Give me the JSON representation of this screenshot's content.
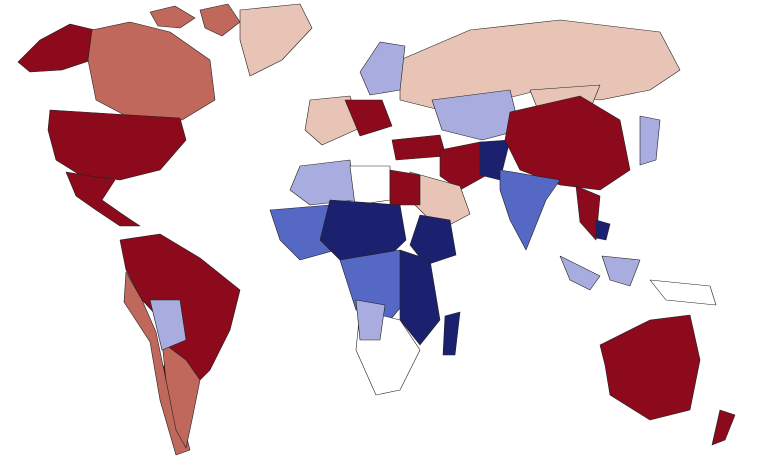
{
  "map": {
    "colors": [
      "#8c0a1c",
      "#c0685c",
      "#e8c4b6",
      "#ffffff",
      "#a9acde",
      "#5468c4",
      "#1b216e"
    ]
  }
}
